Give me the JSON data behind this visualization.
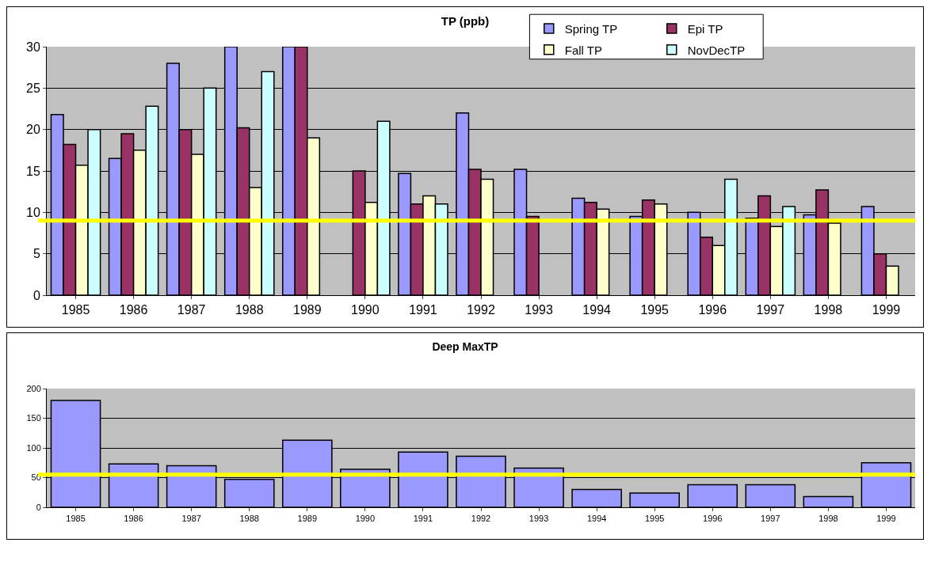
{
  "chart_data": [
    {
      "type": "bar",
      "title": "TP (ppb)",
      "categories": [
        "1985",
        "1986",
        "1987",
        "1988",
        "1989",
        "1990",
        "1991",
        "1992",
        "1993",
        "1994",
        "1995",
        "1996",
        "1997",
        "1998",
        "1999"
      ],
      "series": [
        {
          "name": "Spring TP",
          "color": "#9999ff",
          "values": [
            21.8,
            16.5,
            28,
            30,
            30,
            null,
            14.7,
            22,
            15.2,
            11.7,
            9.5,
            10,
            9.3,
            9.7,
            10.7
          ]
        },
        {
          "name": "Epi TP",
          "color": "#993366",
          "values": [
            18.2,
            19.5,
            20,
            20.2,
            30,
            15,
            11,
            15.2,
            9.5,
            11.2,
            11.5,
            7,
            12,
            12.7,
            5
          ]
        },
        {
          "name": "Fall TP",
          "color": "#ffffcc",
          "values": [
            15.7,
            17.5,
            17,
            13,
            19,
            11.2,
            12,
            14,
            null,
            10.4,
            11,
            6,
            8.3,
            8.7,
            3.5
          ]
        },
        {
          "name": "NovDecTP",
          "color": "#ccffff",
          "values": [
            20,
            22.8,
            25,
            27,
            null,
            21,
            11,
            null,
            null,
            null,
            null,
            14,
            10.7,
            null,
            null
          ]
        }
      ],
      "ylim": [
        0,
        30
      ],
      "yticks": [
        0,
        5,
        10,
        15,
        20,
        25,
        30
      ],
      "grid": "y",
      "legend": "top",
      "ref_lines": [
        {
          "axis": "y",
          "value": 9,
          "color": "#ffff00"
        }
      ]
    },
    {
      "type": "bar",
      "title": "Deep MaxTP",
      "categories": [
        "1985",
        "1986",
        "1987",
        "1988",
        "1989",
        "1990",
        "1991",
        "1992",
        "1993",
        "1994",
        "1995",
        "1996",
        "1997",
        "1998",
        "1999"
      ],
      "series": [
        {
          "color": "#9999ff",
          "values": [
            180,
            73,
            70,
            47,
            113,
            64,
            93,
            86,
            66,
            30,
            24,
            38,
            38,
            18,
            75
          ]
        }
      ],
      "ylim": [
        0,
        200
      ],
      "yticks": [
        0,
        50,
        100,
        150,
        200
      ],
      "grid": "y",
      "ref_lines": [
        {
          "axis": "y",
          "value": 55,
          "color": "#ffff00"
        }
      ]
    }
  ]
}
